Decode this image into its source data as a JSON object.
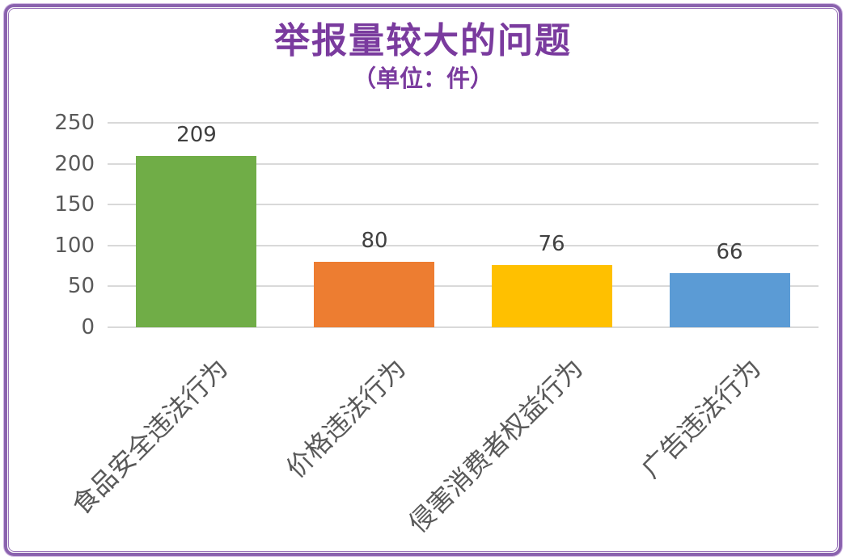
{
  "frame": {
    "border_color": "#8a62ae"
  },
  "chart_data": {
    "type": "bar",
    "title": "举报量较大的问题",
    "subtitle": "（单位：件）",
    "categories": [
      "食品安全违法行为",
      "价格违法行为",
      "侵害消费者权益行为",
      "广告违法行为"
    ],
    "values": [
      209,
      80,
      76,
      66
    ],
    "bar_colors": [
      "#70ad47",
      "#ed7d31",
      "#ffc000",
      "#5b9bd5"
    ],
    "y_ticks": [
      0,
      50,
      100,
      150,
      200,
      250
    ],
    "ylim": [
      0,
      250
    ],
    "grid": true,
    "legend": "none",
    "xlabel": "",
    "ylabel": "",
    "styles": {
      "title_color": "#7a3b9e",
      "gridline_color": "#d9d9d9",
      "tick_label_color": "#595959",
      "data_label_color": "#404040"
    }
  }
}
